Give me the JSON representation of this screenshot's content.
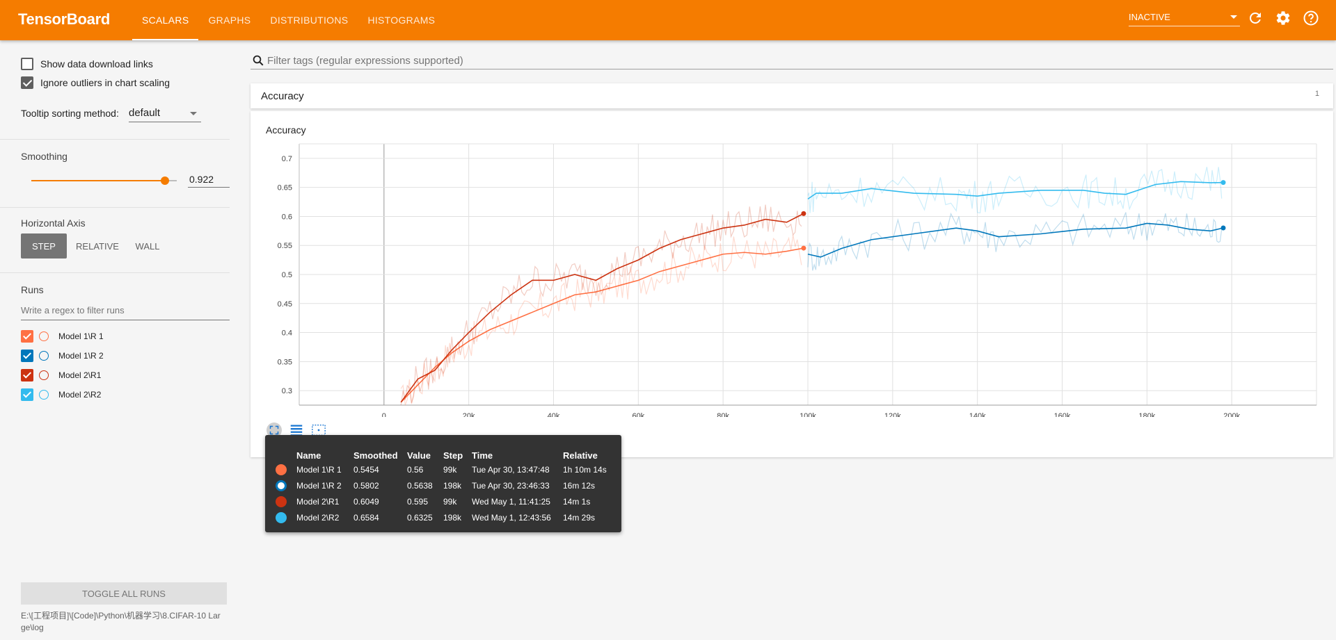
{
  "header": {
    "brand": "TensorBoard",
    "tabs": [
      "SCALARS",
      "GRAPHS",
      "DISTRIBUTIONS",
      "HISTOGRAMS"
    ],
    "active_tab": "SCALARS",
    "run_select": "INACTIVE",
    "icons": [
      "refresh-icon",
      "settings-icon",
      "help-icon"
    ]
  },
  "sidebar": {
    "show_download_links": "Show data download links",
    "ignore_outliers": "Ignore outliers in chart scaling",
    "tooltip_sorting_label": "Tooltip sorting method:",
    "tooltip_sorting_value": "default",
    "smoothing_label": "Smoothing",
    "smoothing_value": "0.922",
    "smoothing_fraction": 0.922,
    "horizontal_axis_label": "Horizontal Axis",
    "axis_options": [
      "STEP",
      "RELATIVE",
      "WALL"
    ],
    "axis_active": "STEP",
    "runs_label": "Runs",
    "runs_filter_placeholder": "Write a regex to filter runs",
    "runs": [
      {
        "name": "Model 1\\R 1",
        "color": "#ff7043",
        "checked": true
      },
      {
        "name": "Model 1\\R 2",
        "color": "#0077bb",
        "checked": true
      },
      {
        "name": "Model 2\\R1",
        "color": "#cc3311",
        "checked": true
      },
      {
        "name": "Model 2\\R2",
        "color": "#33bbee",
        "checked": true
      }
    ],
    "toggle_all": "TOGGLE ALL RUNS",
    "logdir": "E:\\[工程项目]\\[Code]\\Python\\机器学习\\8.CIFAR-10 Large\\log"
  },
  "main": {
    "filter_placeholder": "Filter tags (regular expressions supported)",
    "category_name": "Accuracy",
    "category_count": "1",
    "card_title": "Accuracy"
  },
  "chart_data": {
    "type": "line",
    "title": "Accuracy",
    "xlabel": "",
    "ylabel": "",
    "xlim": [
      -20000,
      220000
    ],
    "ylim": [
      0.275,
      0.725
    ],
    "x_ticks": [
      "0",
      "20k",
      "40k",
      "60k",
      "80k",
      "100k",
      "120k",
      "140k",
      "160k",
      "180k",
      "200k"
    ],
    "y_ticks": [
      "0.3",
      "0.35",
      "0.4",
      "0.45",
      "0.5",
      "0.55",
      "0.6",
      "0.65",
      "0.7"
    ],
    "grid": true,
    "series": [
      {
        "name": "Model 1\\R 1",
        "color": "#ff7043",
        "x": [
          4000,
          8000,
          12000,
          16000,
          20000,
          25000,
          30000,
          35000,
          40000,
          45000,
          50000,
          55000,
          60000,
          65000,
          70000,
          75000,
          80000,
          85000,
          90000,
          95000,
          99000
        ],
        "y": [
          0.28,
          0.31,
          0.34,
          0.365,
          0.385,
          0.405,
          0.42,
          0.435,
          0.45,
          0.465,
          0.47,
          0.48,
          0.49,
          0.505,
          0.515,
          0.525,
          0.535,
          0.538,
          0.535,
          0.54,
          0.5454
        ]
      },
      {
        "name": "Model 1\\R 2",
        "color": "#0077bb",
        "x": [
          100000,
          103000,
          108000,
          115000,
          125000,
          135000,
          140000,
          145000,
          155000,
          165000,
          175000,
          180000,
          185000,
          190000,
          195000,
          198000
        ],
        "y": [
          0.535,
          0.53,
          0.545,
          0.56,
          0.57,
          0.58,
          0.575,
          0.565,
          0.57,
          0.578,
          0.58,
          0.588,
          0.585,
          0.578,
          0.575,
          0.5802
        ]
      },
      {
        "name": "Model 2\\R1",
        "color": "#cc3311",
        "x": [
          4000,
          8000,
          12000,
          16000,
          20000,
          25000,
          30000,
          35000,
          40000,
          45000,
          50000,
          55000,
          60000,
          65000,
          70000,
          75000,
          80000,
          85000,
          90000,
          95000,
          99000
        ],
        "y": [
          0.28,
          0.32,
          0.335,
          0.37,
          0.4,
          0.435,
          0.465,
          0.49,
          0.49,
          0.5,
          0.49,
          0.51,
          0.525,
          0.545,
          0.56,
          0.57,
          0.58,
          0.585,
          0.595,
          0.59,
          0.6049
        ]
      },
      {
        "name": "Model 2\\R2",
        "color": "#33bbee",
        "x": [
          100000,
          102000,
          108000,
          115000,
          125000,
          135000,
          140000,
          145000,
          155000,
          165000,
          170000,
          175000,
          182000,
          188000,
          195000,
          198000
        ],
        "y": [
          0.63,
          0.64,
          0.64,
          0.648,
          0.64,
          0.638,
          0.635,
          0.64,
          0.645,
          0.645,
          0.64,
          0.638,
          0.655,
          0.66,
          0.658,
          0.6584
        ]
      }
    ],
    "legend": "none"
  },
  "tooltip": {
    "headers": [
      "Name",
      "Smoothed",
      "Value",
      "Step",
      "Time",
      "Relative"
    ],
    "rows": [
      {
        "name": "Model 1\\R 1",
        "smoothed": "0.5454",
        "value": "0.56",
        "step": "99k",
        "time": "Tue Apr 30, 13:47:48",
        "relative": "1h 10m 14s",
        "color": "#ff7043",
        "filled": true
      },
      {
        "name": "Model 1\\R 2",
        "smoothed": "0.5802",
        "value": "0.5638",
        "step": "198k",
        "time": "Tue Apr 30, 23:46:33",
        "relative": "16m 12s",
        "color": "#0077bb",
        "filled": false
      },
      {
        "name": "Model 2\\R1",
        "smoothed": "0.6049",
        "value": "0.595",
        "step": "99k",
        "time": "Wed May 1, 11:41:25",
        "relative": "14m 1s",
        "color": "#cc3311",
        "filled": true
      },
      {
        "name": "Model 2\\R2",
        "smoothed": "0.6584",
        "value": "0.6325",
        "step": "198k",
        "time": "Wed May 1, 12:43:56",
        "relative": "14m 29s",
        "color": "#33bbee",
        "filled": true
      }
    ]
  }
}
